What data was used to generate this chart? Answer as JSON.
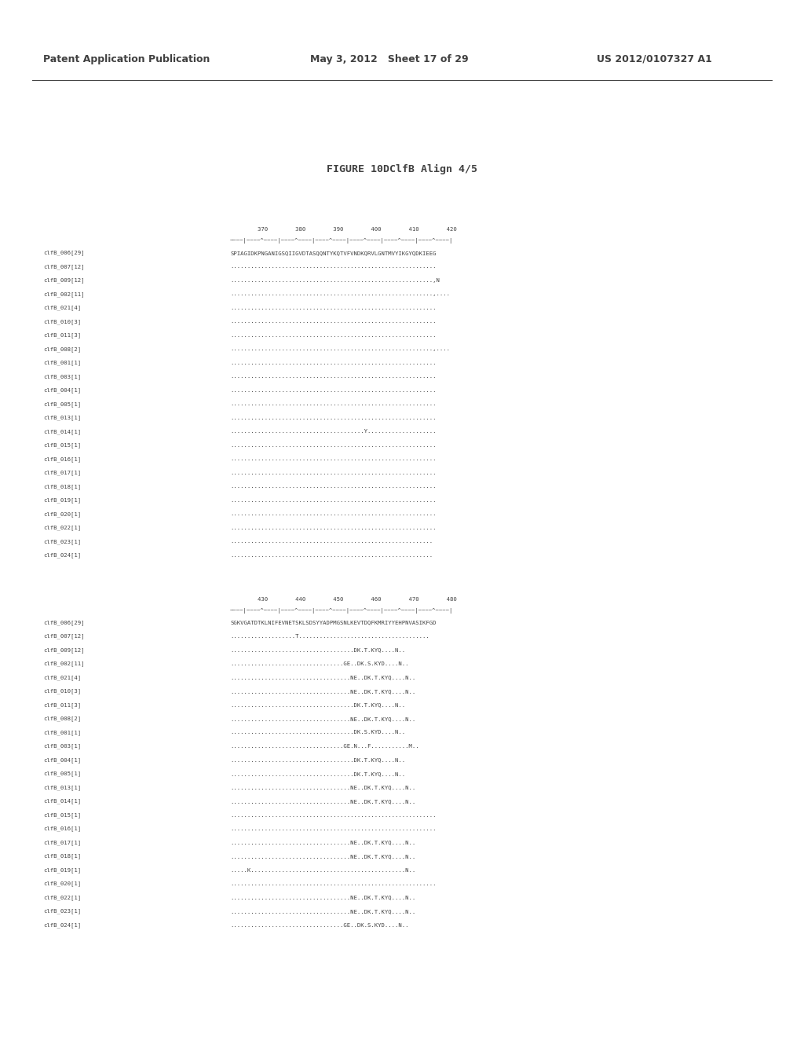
{
  "title": "FIGURE 10DClfB Align 4/5",
  "header_left": "Patent Application Publication",
  "header_mid": "May 3, 2012   Sheet 17 of 29",
  "header_right": "US 2012/0107327 A1",
  "block1": {
    "positions": "        370        380        390        400        410        420",
    "ruler": "~~~~|~~~~^~~~~|~~~~^~~~~|~~~~^~~~~|~~~~^~~~~|~~~~^~~~~|~~~~^~~~~|",
    "rows": [
      [
        "clfB_006[29]",
        "SPIAGIDKPNGANIGSQIIGVDTASQQNTYKQTVFVNDKQRVLGNTMVYIKGYQDKIEEG"
      ],
      [
        "clfB_007[12]",
        "............................................................"
      ],
      [
        "clfB_009[12]",
        "...........................................................,N"
      ],
      [
        "clfB_002[11]",
        "...........................................................,...."
      ],
      [
        "clfB_021[4]",
        "............................................................"
      ],
      [
        "clfB_010[3]",
        "............................................................"
      ],
      [
        "clfB_011[3]",
        "............................................................"
      ],
      [
        "clfB_008[2]",
        "...........................................................,...."
      ],
      [
        "clfB_001[1]",
        "............................................................"
      ],
      [
        "clfB_003[1]",
        "............................................................"
      ],
      [
        "clfB_004[1]",
        "............................................................"
      ],
      [
        "clfB_005[1]",
        "............................................................"
      ],
      [
        "clfB_013[1]",
        "............................................................"
      ],
      [
        "clfB_014[1]",
        ".......................................Y...................."
      ],
      [
        "clfB_015[1]",
        "............................................................"
      ],
      [
        "clfB_016[1]",
        "............................................................"
      ],
      [
        "clfB_017[1]",
        "............................................................"
      ],
      [
        "clfB_018[1]",
        "............................................................"
      ],
      [
        "clfB_019[1]",
        "............................................................"
      ],
      [
        "clfB_020[1]",
        "............................................................"
      ],
      [
        "clfB_022[1]",
        "............................................................"
      ],
      [
        "clfB_023[1]",
        "..........................................................."
      ],
      [
        "clfB_024[1]",
        "..........................................................."
      ]
    ]
  },
  "block2": {
    "positions": "        430        440        450        460        470        480",
    "ruler": "~~~~|~~~~^~~~~|~~~~^~~~~|~~~~^~~~~|~~~~^~~~~|~~~~^~~~~|~~~~^~~~~|",
    "rows": [
      [
        "clfB_006[29]",
        "SGKVGATDTKLNIFEVNETSKLSDSYYADPMGSNLKEVTDQFKMRIYYEHPNVASIKFGD"
      ],
      [
        "clfB_007[12]",
        "...................T......................................"
      ],
      [
        "clfB_009[12]",
        "....................................DK.T.KYQ....N.."
      ],
      [
        "clfB_002[11]",
        ".................................GE..DK.S.KYD....N.."
      ],
      [
        "clfB_021[4]",
        "...................................NE..DK.T.KYQ....N.."
      ],
      [
        "clfB_010[3]",
        "...................................NE..DK.T.KYQ....N.."
      ],
      [
        "clfB_011[3]",
        "....................................DK.T.KYQ....N.."
      ],
      [
        "clfB_008[2]",
        "...................................NE..DK.T.KYQ....N.."
      ],
      [
        "clfB_001[1]",
        "....................................DK.S.KYD....N.."
      ],
      [
        "clfB_003[1]",
        ".................................GE.N...F...........M.."
      ],
      [
        "clfB_004[1]",
        "....................................DK.T.KYQ....N.."
      ],
      [
        "clfB_005[1]",
        "....................................DK.T.KYQ....N.."
      ],
      [
        "clfB_013[1]",
        "...................................NE..DK.T.KYQ....N.."
      ],
      [
        "clfB_014[1]",
        "...................................NE..DK.T.KYQ....N.."
      ],
      [
        "clfB_015[1]",
        "............................................................"
      ],
      [
        "clfB_016[1]",
        "............................................................"
      ],
      [
        "clfB_017[1]",
        "...................................NE..DK.T.KYQ....N.."
      ],
      [
        "clfB_018[1]",
        "...................................NE..DK.T.KYQ....N.."
      ],
      [
        "clfB_019[1]",
        ".....K.............................................N.."
      ],
      [
        "clfB_020[1]",
        "............................................................"
      ],
      [
        "clfB_022[1]",
        "...................................NE..DK.T.KYQ....N.."
      ],
      [
        "clfB_023[1]",
        "...................................NE..DK.T.KYQ....N.."
      ],
      [
        "clfB_024[1]",
        ".................................GE..DK.S.KYD....N.."
      ]
    ]
  },
  "bg_color": "#ffffff",
  "text_color": "#404040",
  "header_fontsize": 9.0,
  "title_fontsize": 9.5,
  "mono_fontsize": 5.2,
  "label_fontsize": 5.2
}
